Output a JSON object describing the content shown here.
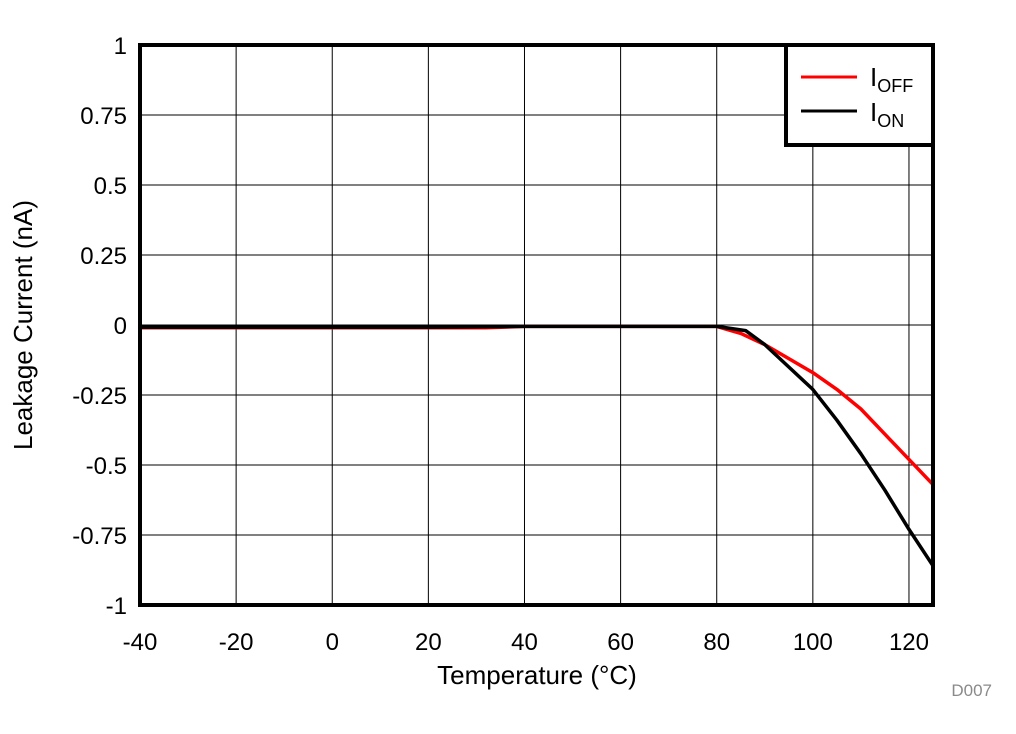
{
  "chart_data": {
    "type": "line",
    "title": "",
    "xlabel": "Temperature (°C)",
    "ylabel": "Leakage Current (nA)",
    "xlim": [
      -40,
      125
    ],
    "ylim": [
      -1,
      1
    ],
    "xticks": [
      -40,
      -20,
      0,
      20,
      40,
      60,
      80,
      100,
      120
    ],
    "yticks": [
      1,
      0.75,
      0.5,
      0.25,
      0,
      -0.25,
      -0.5,
      -0.75,
      -1
    ],
    "ytick_labels": [
      "1",
      "0.75",
      "0.5",
      "0.25",
      "0",
      "-0.25",
      "-0.5",
      "-0.75",
      "-1"
    ],
    "grid": true,
    "legend_position": "upper right",
    "series": [
      {
        "name": "I_OFF",
        "label_main": "I",
        "label_sub": "OFF",
        "color": "#ff0000",
        "x": [
          -40,
          -20,
          0,
          20,
          32,
          40,
          60,
          80,
          85,
          90,
          95,
          100,
          105,
          110,
          115,
          120,
          125
        ],
        "y": [
          -0.01,
          -0.01,
          -0.01,
          -0.01,
          -0.01,
          -0.005,
          -0.005,
          -0.005,
          -0.03,
          -0.07,
          -0.12,
          -0.17,
          -0.23,
          -0.3,
          -0.39,
          -0.48,
          -0.57
        ]
      },
      {
        "name": "I_ON",
        "label_main": "I",
        "label_sub": "ON",
        "color": "#000000",
        "x": [
          -40,
          -20,
          0,
          20,
          40,
          60,
          80,
          86,
          90,
          95,
          100,
          105,
          110,
          115,
          120,
          125
        ],
        "y": [
          -0.008,
          -0.008,
          -0.008,
          -0.008,
          -0.005,
          -0.005,
          -0.005,
          -0.02,
          -0.07,
          -0.15,
          -0.23,
          -0.34,
          -0.46,
          -0.59,
          -0.73,
          -0.86
        ]
      }
    ],
    "annotations": [
      "D007"
    ]
  }
}
